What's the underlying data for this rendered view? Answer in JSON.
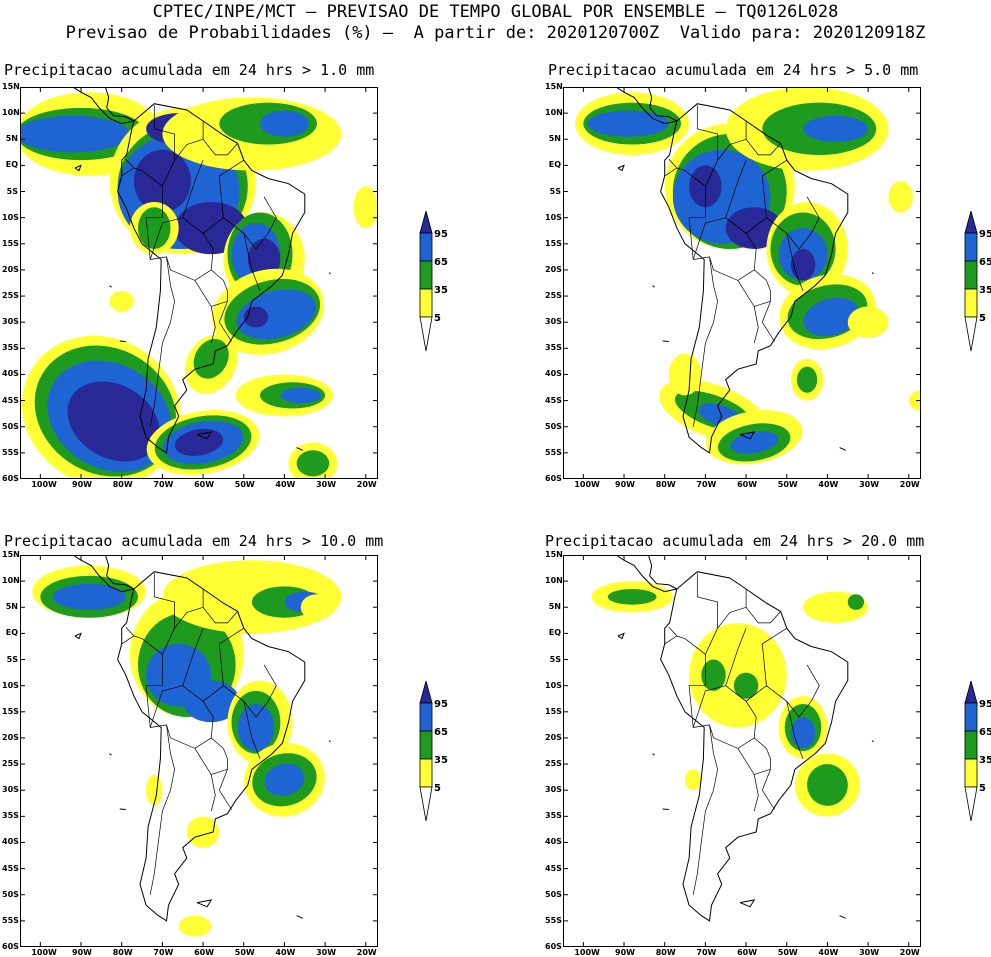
{
  "header": {
    "line1": "CPTEC/INPE/MCT — PREVISAO DE TEMPO GLOBAL POR ENSEMBLE — TQ0126L028",
    "line2": "Previsao de Probabilidades (%) —  A partir de: 2020120700Z  Valido para: 2020120918Z"
  },
  "colors": {
    "c5": "#ffff33",
    "c35": "#1e9b1e",
    "c65": "#1e64d2",
    "c95": "#282896"
  },
  "axes": {
    "lat_labels": [
      "15N",
      "10N",
      "5N",
      "EQ",
      "5S",
      "10S",
      "15S",
      "20S",
      "25S",
      "30S",
      "35S",
      "40S",
      "45S",
      "50S",
      "55S",
      "60S"
    ],
    "lon_labels": [
      "100W",
      "90W",
      "80W",
      "70W",
      "60W",
      "50W",
      "40W",
      "30W",
      "20W"
    ]
  },
  "colorbar": {
    "levels": [
      "95",
      "65",
      "35",
      "5"
    ]
  },
  "panels": [
    {
      "title": "Precipitacao acumulada em 24 hrs > 1.0 mm"
    },
    {
      "title": "Precipitacao acumulada em 24 hrs > 5.0 mm"
    },
    {
      "title": "Precipitacao acumulada em 24 hrs > 10.0 mm"
    },
    {
      "title": "Precipitacao acumulada em 24 hrs > 20.0 mm"
    }
  ]
}
